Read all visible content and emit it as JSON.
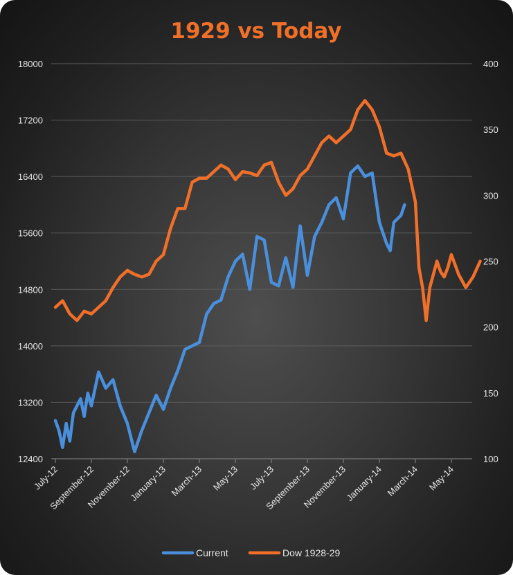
{
  "chart_data": {
    "type": "line",
    "title": "1929 vs Today",
    "xlabel": "",
    "ylabel": "",
    "x_ticks": [
      "July-12",
      "September-12",
      "November-12",
      "January-13",
      "March-13",
      "May-13",
      "July-13",
      "September-13",
      "November-13",
      "January-14",
      "March-14",
      "May-14"
    ],
    "y_left": {
      "min": 12400,
      "max": 18000,
      "ticks": [
        12400,
        13200,
        14000,
        14800,
        15600,
        16400,
        17200,
        18000
      ]
    },
    "y_right": {
      "min": 100,
      "max": 400,
      "ticks": [
        100,
        150,
        200,
        250,
        300,
        350,
        400
      ]
    },
    "grid": "horizontal",
    "legend_position": "bottom",
    "series": [
      {
        "name": "Current",
        "axis": "left",
        "color": "#4a8fdc",
        "x": [
          0,
          0.1,
          0.2,
          0.3,
          0.4,
          0.5,
          0.6,
          0.7,
          0.8,
          0.9,
          1.0,
          1.2,
          1.4,
          1.6,
          1.8,
          2.0,
          2.2,
          2.4,
          2.6,
          2.8,
          3.0,
          3.2,
          3.4,
          3.6,
          3.8,
          4.0,
          4.2,
          4.4,
          4.6,
          4.8,
          5.0,
          5.2,
          5.4,
          5.6,
          5.8,
          6.0,
          6.2,
          6.4,
          6.6,
          6.8,
          7.0,
          7.2,
          7.4,
          7.6,
          7.8,
          8.0,
          8.2,
          8.4,
          8.6,
          8.8,
          9.0,
          9.1,
          9.2,
          9.3,
          9.4,
          9.5,
          9.6,
          9.7
        ],
        "y": [
          12940,
          12800,
          12560,
          12900,
          12650,
          13050,
          13150,
          13250,
          13000,
          13330,
          13150,
          13630,
          13400,
          13520,
          13150,
          12900,
          12500,
          12800,
          13050,
          13300,
          13100,
          13400,
          13650,
          13950,
          14000,
          14050,
          14450,
          14600,
          14650,
          14980,
          15200,
          15300,
          14800,
          15550,
          15500,
          14900,
          14850,
          15250,
          14830,
          15700,
          15000,
          15550,
          15750,
          16000,
          16100,
          15800,
          16450,
          16550,
          16400,
          16450,
          15750,
          15600,
          15450,
          15350,
          15750,
          15800,
          15850,
          16000
        ]
      },
      {
        "name": "Dow 1928-29",
        "axis": "right",
        "color": "#f0702a",
        "x": [
          0,
          0.2,
          0.4,
          0.6,
          0.8,
          1.0,
          1.2,
          1.4,
          1.6,
          1.8,
          2.0,
          2.2,
          2.4,
          2.6,
          2.8,
          3.0,
          3.2,
          3.4,
          3.6,
          3.8,
          4.0,
          4.2,
          4.4,
          4.6,
          4.8,
          5.0,
          5.2,
          5.4,
          5.6,
          5.8,
          6.0,
          6.2,
          6.4,
          6.6,
          6.8,
          7.0,
          7.2,
          7.4,
          7.6,
          7.8,
          8.0,
          8.2,
          8.4,
          8.6,
          8.8,
          9.0,
          9.2,
          9.4,
          9.6,
          9.8,
          10.0,
          10.1,
          10.2,
          10.3,
          10.4,
          10.5,
          10.6,
          10.7,
          10.8,
          10.9,
          11.0,
          11.2,
          11.4,
          11.6,
          11.8
        ],
        "y": [
          215,
          220,
          210,
          205,
          212,
          210,
          215,
          220,
          230,
          238,
          243,
          240,
          238,
          240,
          250,
          255,
          275,
          290,
          290,
          310,
          313,
          313,
          318,
          323,
          320,
          312,
          318,
          317,
          315,
          323,
          325,
          310,
          300,
          305,
          315,
          320,
          330,
          340,
          345,
          340,
          345,
          350,
          365,
          372,
          365,
          352,
          332,
          330,
          332,
          320,
          295,
          245,
          230,
          205,
          230,
          240,
          250,
          242,
          238,
          245,
          255,
          240,
          230,
          238,
          250
        ]
      }
    ]
  }
}
